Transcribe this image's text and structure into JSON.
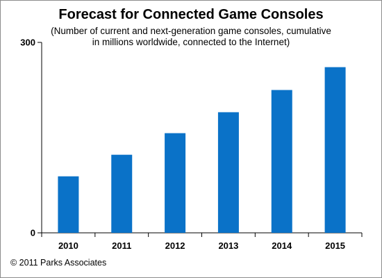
{
  "chart_data": {
    "type": "bar",
    "title": "Forecast for Connected Game Consoles",
    "subtitle_lines": [
      "(Number of current and next-generation game consoles, cumulative",
      "in millions worldwide, connected to the Internet)"
    ],
    "categories": [
      "2010",
      "2011",
      "2012",
      "2013",
      "2014",
      "2015"
    ],
    "values": [
      89,
      123,
      157,
      190,
      225,
      261
    ],
    "ylim": [
      0,
      300
    ],
    "y_ticks": [
      "0",
      "300"
    ],
    "xlabel": "",
    "ylabel": "",
    "grid": false,
    "bar_color": "#0a72c8"
  },
  "footer": {
    "copyright": "© 2011 Parks Associates"
  }
}
